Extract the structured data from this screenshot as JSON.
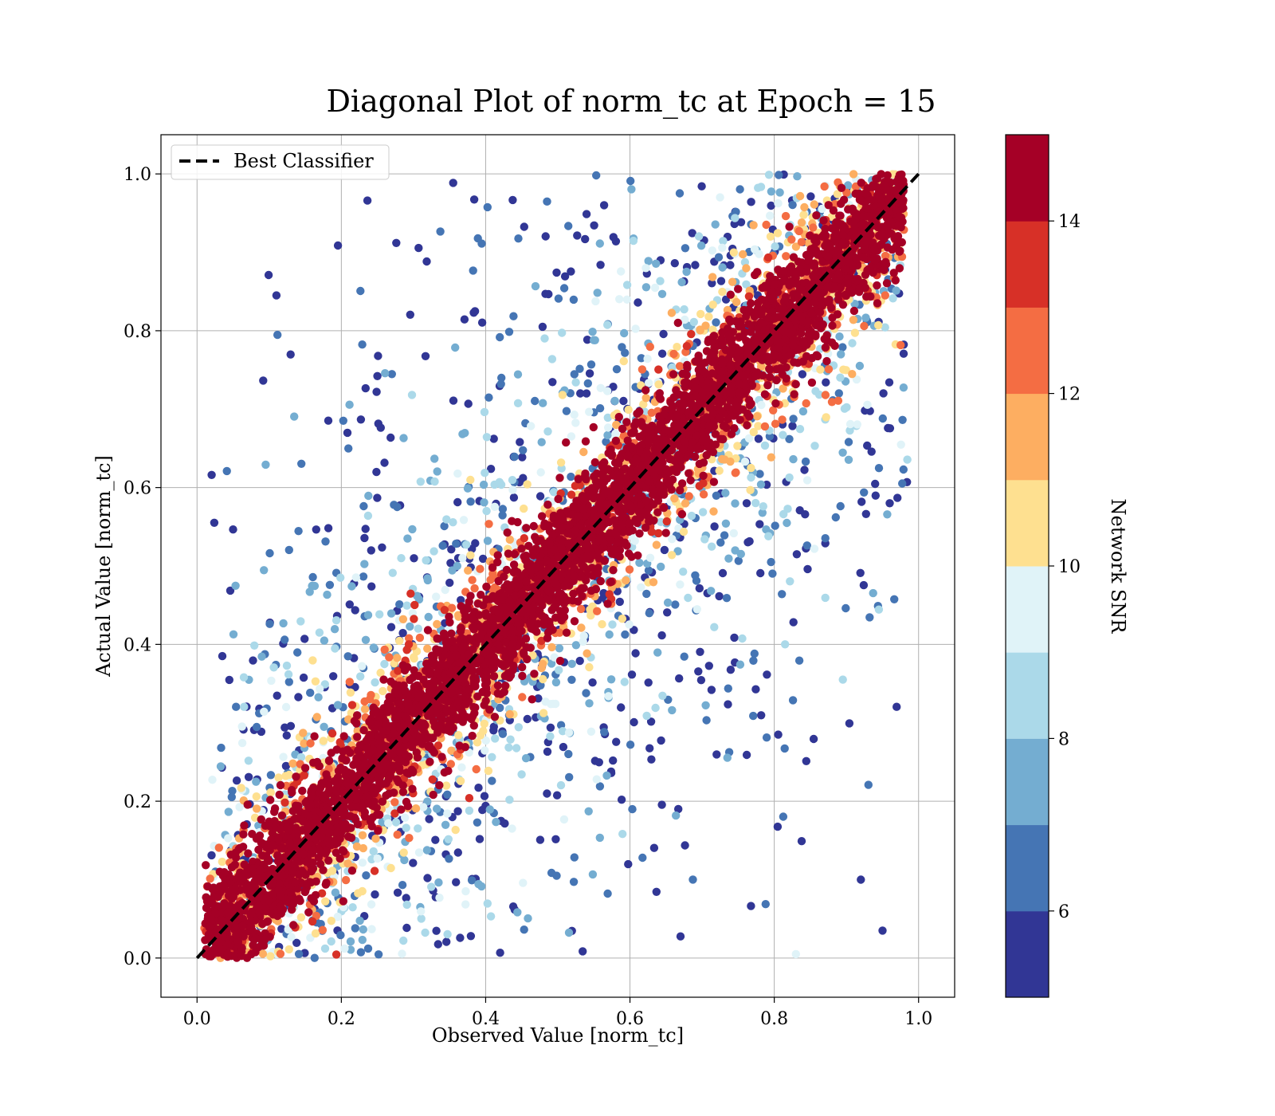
{
  "chart_data": {
    "type": "scatter",
    "title": "Diagonal Plot of norm_tc at Epoch = 15",
    "xlabel": "Observed Value [norm_tc]",
    "ylabel": "Actual Value [norm_tc]",
    "xlim": [
      -0.05,
      1.05
    ],
    "ylim": [
      -0.05,
      1.05
    ],
    "xticks": [
      "0.0",
      "0.2",
      "0.4",
      "0.6",
      "0.8",
      "1.0"
    ],
    "yticks": [
      "0.0",
      "0.2",
      "0.4",
      "0.6",
      "0.8",
      "1.0"
    ],
    "grid": true,
    "legend": {
      "placement": "top-left",
      "entries": [
        {
          "label": "Best Classifier",
          "style": "black dashed line",
          "color": "#000000"
        }
      ]
    },
    "reference_line": {
      "label": "Best Classifier",
      "x": [
        0,
        1
      ],
      "y": [
        0,
        1
      ]
    },
    "colorbar": {
      "label": "Network SNR",
      "range": [
        5,
        15
      ],
      "ticks": [
        "6",
        "8",
        "10",
        "12",
        "14"
      ],
      "colors": [
        "#313695",
        "#4575b4",
        "#74add1",
        "#abd9e9",
        "#e0f3f8",
        "#fee090",
        "#fdae61",
        "#f46d43",
        "#d73027",
        "#a50026"
      ]
    },
    "description_of_points": "Tens of thousands of points; high-SNR (red) points tightly around y=x, low-SNR (blue) points widely scattered off-diagonal",
    "sample_points": [
      {
        "x": 0.11,
        "y": 0.845,
        "snr": 5.5
      },
      {
        "x": 0.035,
        "y": 0.385,
        "snr": 5.5
      },
      {
        "x": 0.96,
        "y": 0.58,
        "snr": 5.5
      },
      {
        "x": 0.92,
        "y": 0.1,
        "snr": 5.5
      },
      {
        "x": 0.95,
        "y": 0.035,
        "snr": 5.5
      },
      {
        "x": 0.895,
        "y": 0.355,
        "snr": 8.5
      },
      {
        "x": 0.83,
        "y": 0.005,
        "snr": 9.0
      },
      {
        "x": 0.5,
        "y": 0.5,
        "snr": 14.5
      },
      {
        "x": 0.2,
        "y": 0.2,
        "snr": 14.5
      },
      {
        "x": 0.8,
        "y": 0.8,
        "snr": 14.5
      }
    ]
  }
}
